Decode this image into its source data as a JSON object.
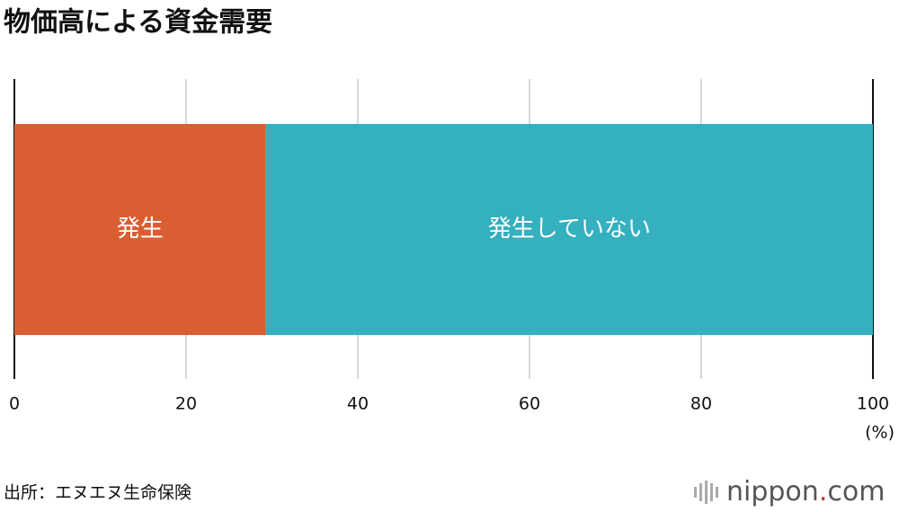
{
  "chart_data": {
    "type": "stacked_bar",
    "orientation": "horizontal",
    "title": "物価高による資金需要",
    "categories": [
      null
    ],
    "series": [
      {
        "name": "発生",
        "color": "#d95f32",
        "values": [
          29.3
        ]
      },
      {
        "name": "発生していない",
        "color": "#35b0bf",
        "values": [
          70.7
        ]
      }
    ],
    "xlim": [
      0,
      100
    ],
    "xticks": [
      0,
      20,
      40,
      60,
      80,
      100
    ],
    "grid": true,
    "x_unit": "(%)",
    "source": "出所：エヌエヌ生命保険",
    "logo": [
      "nippon",
      ".",
      "com"
    ]
  }
}
